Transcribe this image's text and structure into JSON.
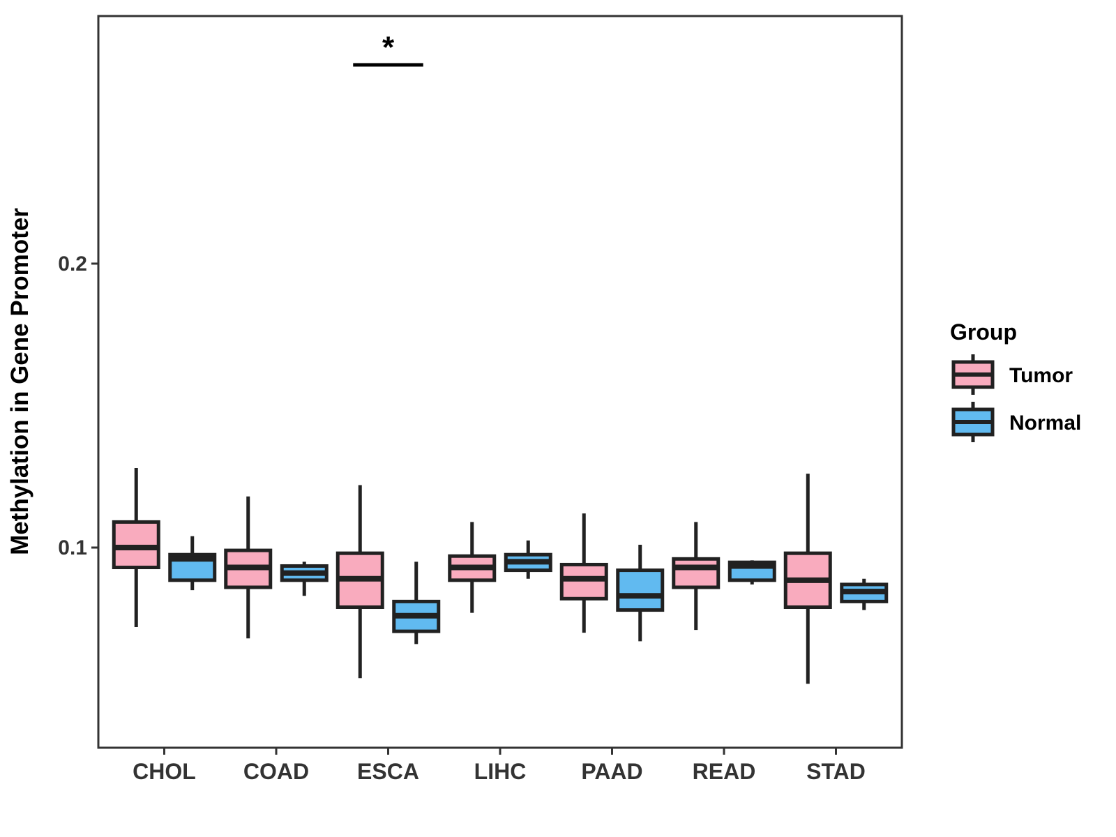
{
  "figure": {
    "background": "#FFFFFF"
  },
  "chart_data": {
    "type": "boxplot",
    "title": "",
    "ylabel": "Methylation in Gene Promoter",
    "xlabel": "",
    "categories": [
      "CHOL",
      "COAD",
      "ESCA",
      "LIHC",
      "PAAD",
      "READ",
      "STAD"
    ],
    "yticks": [
      0.1,
      0.2
    ],
    "ytick_labels": [
      "0.1",
      "0.2"
    ],
    "ylim": [
      0.0295,
      0.2872
    ],
    "grid": false,
    "legend": {
      "title": "Group",
      "position": "right"
    },
    "colors": {
      "tumor_fill": "#F9ABBE",
      "normal_fill": "#61BAF0",
      "box_stroke": "#212121",
      "axis_text": "#333333",
      "panel_border": "#333333",
      "annotation": "#000000"
    },
    "groups": [
      {
        "name": "Tumor",
        "fill": "#F9ABBE",
        "stroke": "#212121"
      },
      {
        "name": "Normal",
        "fill": "#61BAF0",
        "stroke": "#212121"
      }
    ],
    "series": [
      {
        "name": "Tumor",
        "boxes": [
          {
            "category": "CHOL",
            "whisker_low": 0.072,
            "q1": 0.093,
            "median": 0.1,
            "q3": 0.109,
            "whisker_high": 0.128
          },
          {
            "category": "COAD",
            "whisker_low": 0.068,
            "q1": 0.086,
            "median": 0.093,
            "q3": 0.099,
            "whisker_high": 0.118
          },
          {
            "category": "ESCA",
            "whisker_low": 0.054,
            "q1": 0.079,
            "median": 0.089,
            "q3": 0.098,
            "whisker_high": 0.122
          },
          {
            "category": "LIHC",
            "whisker_low": 0.077,
            "q1": 0.0885,
            "median": 0.093,
            "q3": 0.097,
            "whisker_high": 0.109
          },
          {
            "category": "PAAD",
            "whisker_low": 0.07,
            "q1": 0.082,
            "median": 0.089,
            "q3": 0.094,
            "whisker_high": 0.112
          },
          {
            "category": "READ",
            "whisker_low": 0.071,
            "q1": 0.086,
            "median": 0.093,
            "q3": 0.096,
            "whisker_high": 0.109
          },
          {
            "category": "STAD",
            "whisker_low": 0.052,
            "q1": 0.079,
            "median": 0.0885,
            "q3": 0.098,
            "whisker_high": 0.126
          }
        ]
      },
      {
        "name": "Normal",
        "boxes": [
          {
            "category": "CHOL",
            "whisker_low": 0.085,
            "q1": 0.0885,
            "median": 0.096,
            "q3": 0.0975,
            "whisker_high": 0.104
          },
          {
            "category": "COAD",
            "whisker_low": 0.083,
            "q1": 0.0885,
            "median": 0.091,
            "q3": 0.0935,
            "whisker_high": 0.095
          },
          {
            "category": "ESCA",
            "whisker_low": 0.066,
            "q1": 0.0705,
            "median": 0.076,
            "q3": 0.081,
            "whisker_high": 0.095
          },
          {
            "category": "LIHC",
            "whisker_low": 0.089,
            "q1": 0.092,
            "median": 0.095,
            "q3": 0.0975,
            "whisker_high": 0.1025
          },
          {
            "category": "PAAD",
            "whisker_low": 0.067,
            "q1": 0.078,
            "median": 0.083,
            "q3": 0.092,
            "whisker_high": 0.101
          },
          {
            "category": "READ",
            "whisker_low": 0.087,
            "q1": 0.0885,
            "median": 0.0935,
            "q3": 0.0948,
            "whisker_high": 0.0955
          },
          {
            "category": "STAD",
            "whisker_low": 0.078,
            "q1": 0.081,
            "median": 0.0845,
            "q3": 0.087,
            "whisker_high": 0.089
          }
        ]
      }
    ],
    "significance": {
      "label": "*",
      "category": "ESCA",
      "line_y": 0.27,
      "label_y": 0.278
    }
  }
}
